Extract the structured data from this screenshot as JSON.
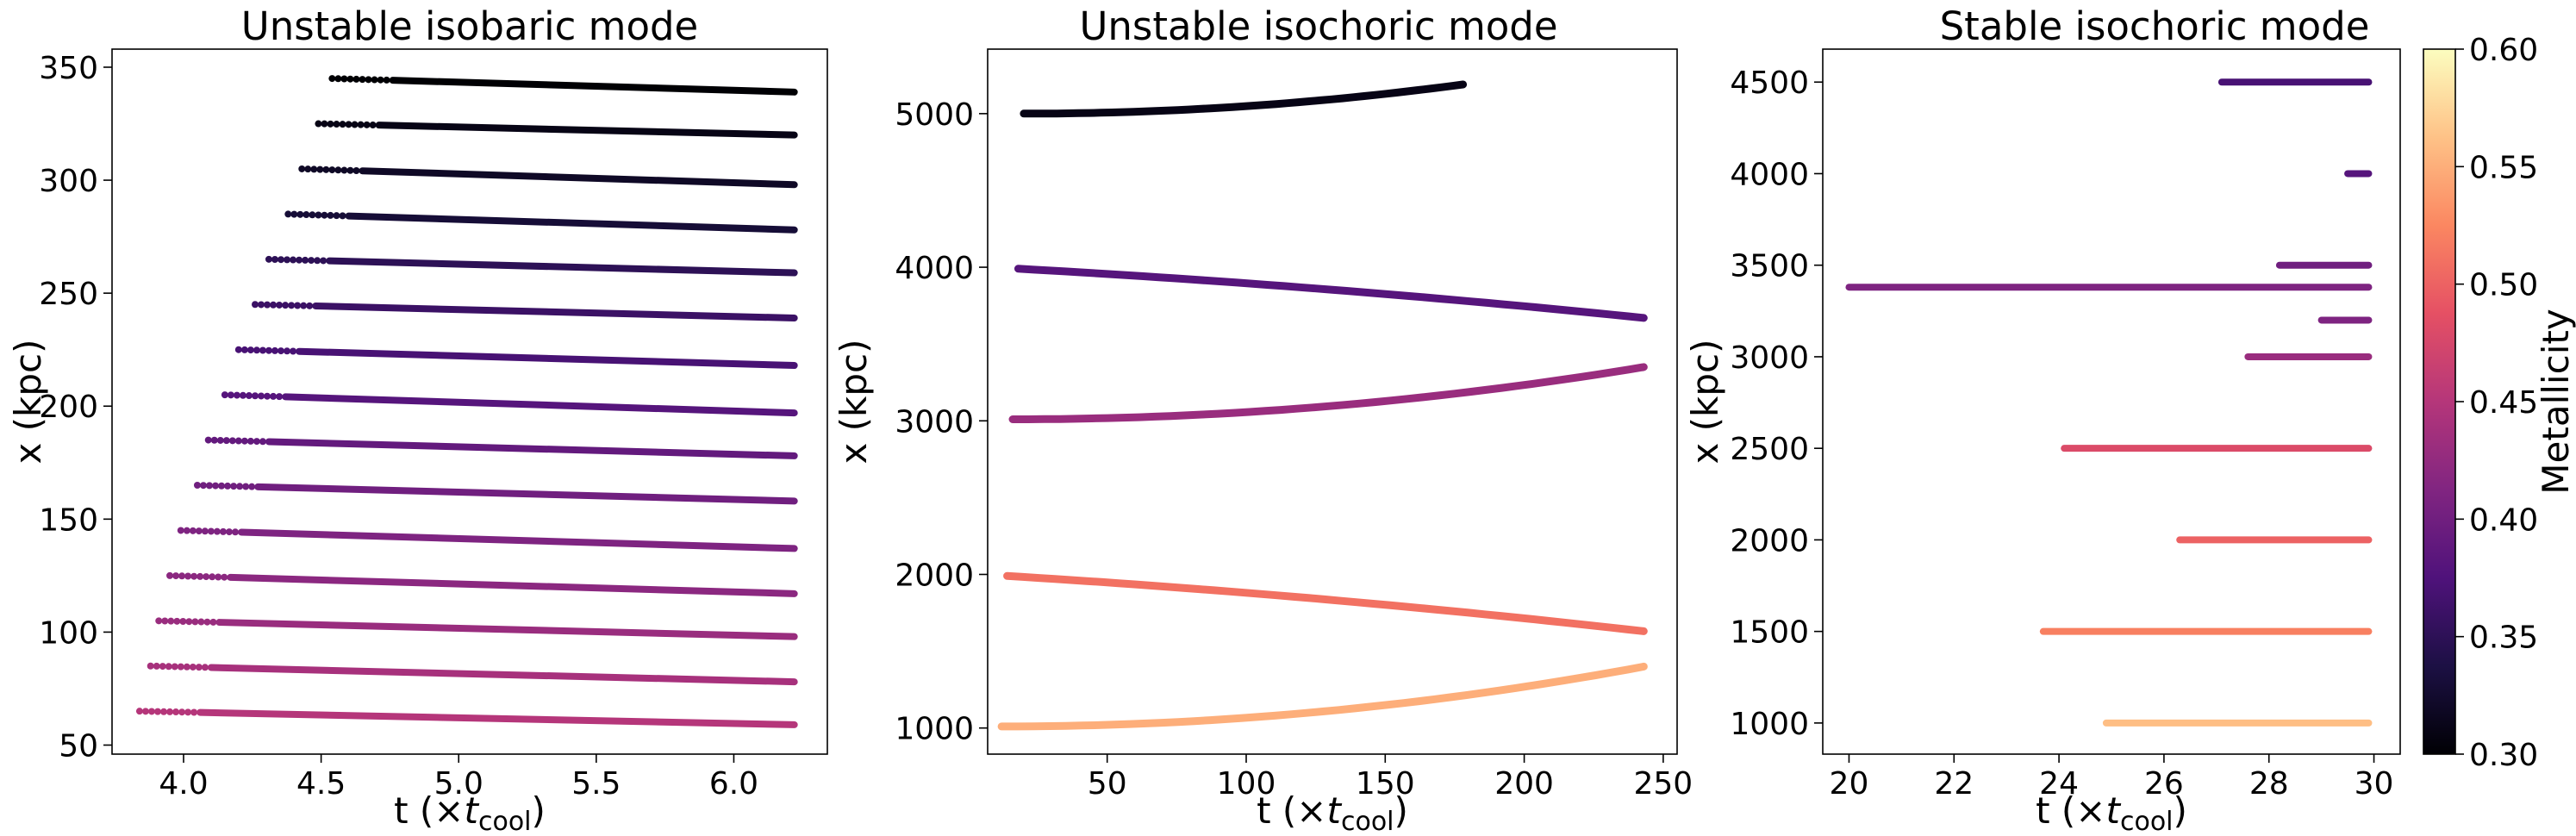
{
  "colorbar": {
    "label": "Metallicity",
    "range": [
      0.3,
      0.6
    ],
    "ticks": [
      "0.30",
      "0.35",
      "0.40",
      "0.45",
      "0.50",
      "0.55",
      "0.60"
    ],
    "colormap": "magma"
  },
  "chart_data": [
    {
      "type": "scatter",
      "title": "Unstable isobaric mode",
      "xlabel": "t (×t_cool)",
      "ylabel": "x (kpc)",
      "xlim": [
        3.74,
        6.34
      ],
      "ylim": [
        46,
        358
      ],
      "xticks": [
        "4.0",
        "4.5",
        "5.0",
        "5.5",
        "6.0"
      ],
      "yticks": [
        "50",
        "100",
        "150",
        "200",
        "250",
        "300",
        "350"
      ],
      "series": [
        {
          "metallicity": 0.3,
          "t_start": 4.54,
          "t_end": 6.22,
          "x_start": 345,
          "x_end": 339
        },
        {
          "metallicity": 0.31,
          "t_start": 4.49,
          "t_end": 6.22,
          "x_start": 325,
          "x_end": 320
        },
        {
          "metallicity": 0.32,
          "t_start": 4.43,
          "t_end": 6.22,
          "x_start": 305,
          "x_end": 298
        },
        {
          "metallicity": 0.33,
          "t_start": 4.38,
          "t_end": 6.22,
          "x_start": 285,
          "x_end": 278
        },
        {
          "metallicity": 0.35,
          "t_start": 4.31,
          "t_end": 6.22,
          "x_start": 265,
          "x_end": 259
        },
        {
          "metallicity": 0.36,
          "t_start": 4.26,
          "t_end": 6.22,
          "x_start": 245,
          "x_end": 239
        },
        {
          "metallicity": 0.37,
          "t_start": 4.2,
          "t_end": 6.22,
          "x_start": 225,
          "x_end": 218
        },
        {
          "metallicity": 0.38,
          "t_start": 4.15,
          "t_end": 6.22,
          "x_start": 205,
          "x_end": 197
        },
        {
          "metallicity": 0.39,
          "t_start": 4.09,
          "t_end": 6.22,
          "x_start": 185,
          "x_end": 178
        },
        {
          "metallicity": 0.4,
          "t_start": 4.05,
          "t_end": 6.22,
          "x_start": 165,
          "x_end": 158
        },
        {
          "metallicity": 0.41,
          "t_start": 3.99,
          "t_end": 6.22,
          "x_start": 145,
          "x_end": 137
        },
        {
          "metallicity": 0.42,
          "t_start": 3.95,
          "t_end": 6.22,
          "x_start": 125,
          "x_end": 117
        },
        {
          "metallicity": 0.43,
          "t_start": 3.91,
          "t_end": 6.22,
          "x_start": 105,
          "x_end": 98
        },
        {
          "metallicity": 0.44,
          "t_start": 3.88,
          "t_end": 6.22,
          "x_start": 85,
          "x_end": 78
        },
        {
          "metallicity": 0.45,
          "t_start": 3.84,
          "t_end": 6.22,
          "x_start": 65,
          "x_end": 59
        }
      ]
    },
    {
      "type": "scatter",
      "title": "Unstable isochoric mode",
      "xlabel": "t (×t_cool)",
      "ylabel": "x (kpc)",
      "xlim": [
        7,
        255
      ],
      "ylim": [
        830,
        5420
      ],
      "xticks": [
        "50",
        "100",
        "150",
        "200",
        "250"
      ],
      "yticks": [
        "1000",
        "2000",
        "3000",
        "4000",
        "5000"
      ],
      "series": [
        {
          "metallicity": 0.31,
          "t_start": 20,
          "t_end": 178,
          "x_start": 5000,
          "x_end": 5190,
          "shape": "rising"
        },
        {
          "metallicity": 0.38,
          "t_start": 18,
          "t_end": 243,
          "x_start": 3990,
          "x_end": 3670,
          "shape": "falling"
        },
        {
          "metallicity": 0.43,
          "t_start": 16,
          "t_end": 243,
          "x_start": 3010,
          "x_end": 3350,
          "shape": "rising"
        },
        {
          "metallicity": 0.51,
          "t_start": 14,
          "t_end": 243,
          "x_start": 1990,
          "x_end": 1630,
          "shape": "falling"
        },
        {
          "metallicity": 0.55,
          "t_start": 12,
          "t_end": 243,
          "x_start": 1010,
          "x_end": 1400,
          "shape": "rising"
        }
      ]
    },
    {
      "type": "scatter",
      "title": "Stable isochoric mode",
      "xlabel": "t (×t_cool)",
      "ylabel": "x (kpc)",
      "xlim": [
        19.5,
        30.5
      ],
      "ylim": [
        830,
        4680
      ],
      "xticks": [
        "20",
        "22",
        "24",
        "26",
        "28",
        "30"
      ],
      "yticks": [
        "1000",
        "1500",
        "2000",
        "2500",
        "3000",
        "3500",
        "4000",
        "4500"
      ],
      "series": [
        {
          "metallicity": 0.37,
          "t_start": 27.1,
          "t_end": 29.9,
          "x": 4500
        },
        {
          "metallicity": 0.38,
          "t_start": 29.5,
          "t_end": 29.9,
          "x": 4000
        },
        {
          "metallicity": 0.4,
          "t_start": 28.2,
          "t_end": 29.9,
          "x": 3500
        },
        {
          "metallicity": 0.41,
          "t_start": 20.0,
          "t_end": 29.9,
          "x": 3380
        },
        {
          "metallicity": 0.41,
          "t_start": 29.0,
          "t_end": 29.9,
          "x": 3200
        },
        {
          "metallicity": 0.43,
          "t_start": 27.6,
          "t_end": 29.9,
          "x": 3000
        },
        {
          "metallicity": 0.48,
          "t_start": 24.1,
          "t_end": 29.9,
          "x": 2500
        },
        {
          "metallicity": 0.5,
          "t_start": 26.3,
          "t_end": 29.9,
          "x": 2000
        },
        {
          "metallicity": 0.52,
          "t_start": 23.7,
          "t_end": 29.9,
          "x": 1500
        },
        {
          "metallicity": 0.56,
          "t_start": 24.9,
          "t_end": 29.9,
          "x": 1000
        }
      ]
    }
  ]
}
